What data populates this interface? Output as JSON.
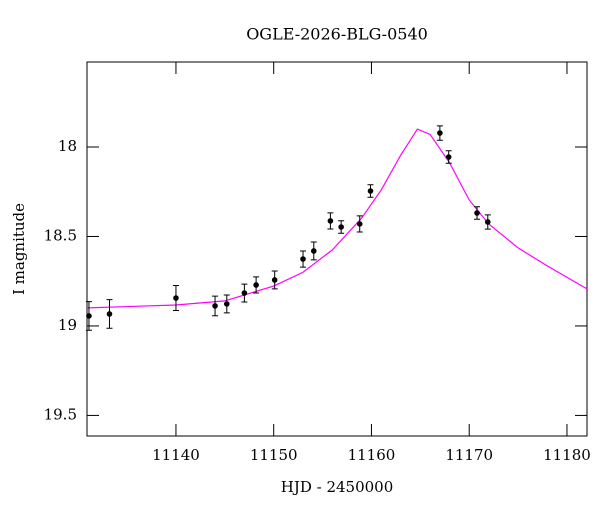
{
  "chart_data": {
    "type": "scatter",
    "title": "OGLE-2026-BLG-0540",
    "x_label": "HJD - 2450000",
    "y_label": "I magnitude",
    "xlim": [
      11130.9,
      11182.05
    ],
    "ylim": [
      19.615,
      17.525
    ],
    "xticks": [
      11140,
      11150,
      11160,
      11170,
      11180
    ],
    "yticks": [
      18,
      18.5,
      19,
      19.5
    ],
    "grid": false,
    "series": [
      {
        "type": "line",
        "color": "#ff00ff",
        "x": [
          11130.9,
          11140,
          11145,
          11150,
          11153,
          11156,
          11159,
          11161,
          11163,
          11164.7,
          11166,
          11168,
          11170,
          11172,
          11175,
          11178,
          11182.05
        ],
        "values": [
          18.899,
          18.883,
          18.86,
          18.777,
          18.7,
          18.575,
          18.397,
          18.24,
          18.045,
          17.9,
          17.93,
          18.089,
          18.296,
          18.43,
          18.564,
          18.665,
          18.793
        ]
      },
      {
        "type": "errorbar",
        "color": "#000000",
        "x": [
          11131.1,
          11133.2,
          11140.0,
          11144.0,
          11145.2,
          11147.0,
          11148.2,
          11150.1,
          11153.0,
          11154.1,
          11155.8,
          11156.9,
          11158.8,
          11159.9,
          11167.0,
          11167.9,
          11170.8,
          11171.9
        ],
        "values": [
          18.944,
          18.933,
          18.844,
          18.888,
          18.877,
          18.816,
          18.771,
          18.743,
          18.626,
          18.581,
          18.413,
          18.447,
          18.43,
          18.246,
          17.922,
          18.056,
          18.369,
          18.419
        ],
        "errors": [
          0.08,
          0.08,
          0.07,
          0.055,
          0.05,
          0.05,
          0.045,
          0.05,
          0.045,
          0.05,
          0.045,
          0.035,
          0.045,
          0.035,
          0.04,
          0.035,
          0.035,
          0.04
        ]
      }
    ]
  }
}
